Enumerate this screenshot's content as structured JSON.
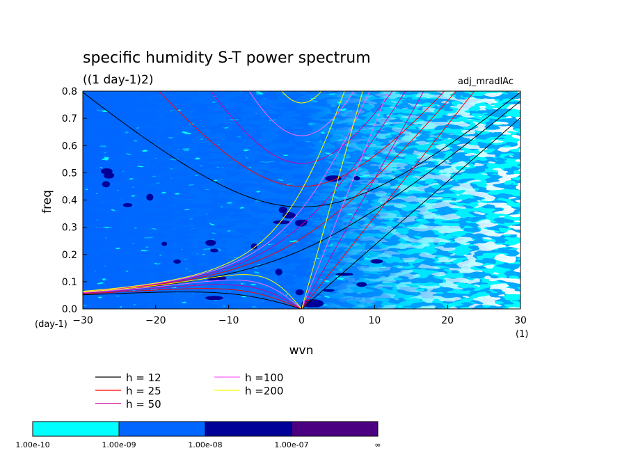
{
  "chart_data": {
    "type": "heatmap",
    "title": "specific humidity S-T power spectrum",
    "subtitle": "((1 day-1)2)",
    "label_right": "adj_mradlAc",
    "xlabel": "wvn",
    "ylabel": "freq",
    "x_unit": "(1)",
    "y_unit": "(day-1)",
    "xlim": [
      -30,
      30
    ],
    "ylim": [
      0,
      0.8
    ],
    "xticks": [
      "−30",
      "−20",
      "−10",
      "0",
      "10",
      "20",
      "30"
    ],
    "xtick_values": [
      -30,
      -20,
      -10,
      0,
      10,
      20,
      30
    ],
    "yticks": [
      "0.0",
      "0.1",
      "0.2",
      "0.3",
      "0.4",
      "0.5",
      "0.6",
      "0.7",
      "0.8"
    ],
    "ytick_values": [
      0,
      0.1,
      0.2,
      0.3,
      0.4,
      0.5,
      0.6,
      0.7,
      0.8
    ],
    "contour_levels": [
      "1.00e-10",
      "1.00e-09",
      "1.00e-08",
      "1.00e-07",
      "∞"
    ],
    "contour_colors": [
      "#ffffff",
      "#00ffff",
      "#0066ff",
      "#000099",
      "#4b0082"
    ],
    "legend_lines": [
      {
        "label": "h = 12",
        "color": "#000000"
      },
      {
        "label": "h = 25",
        "color": "#ff0000"
      },
      {
        "label": "h = 50",
        "color": "#cc0099"
      },
      {
        "label": "h =100",
        "color": "#ff66ff"
      },
      {
        "label": "h =200",
        "color": "#ffff00"
      }
    ],
    "dispersion_h": [
      12,
      25,
      50,
      100,
      200
    ]
  }
}
